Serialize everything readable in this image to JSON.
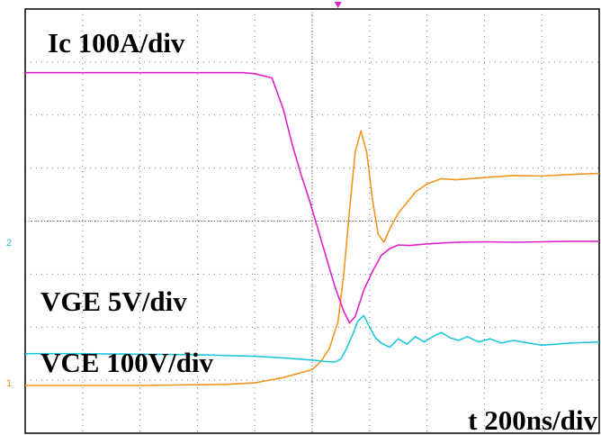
{
  "chart_data": {
    "type": "line",
    "title": "",
    "labels": {
      "ic": "Ic 100A/div",
      "vge": "VGE 5V/div",
      "vce": "VCE 100V/div",
      "time": "t 200ns/div"
    },
    "grid": {
      "x_divisions": 10,
      "y_divisions": 8,
      "style": "dotted",
      "center_cross_ticks": true
    },
    "x_unit": "ns",
    "x_per_div": 200,
    "x_range": [
      0,
      2000
    ],
    "y_range_div": [
      0,
      8
    ],
    "channel_markers": [
      {
        "text": "1",
        "color": "#f0961e",
        "y_div": 0.95
      },
      {
        "text": "2",
        "color": "#1ec8dc",
        "y_div": 3.6
      }
    ],
    "trigger_marker": {
      "color": "#e020c8",
      "x_ns": 1090
    },
    "series": [
      {
        "name": "Ic",
        "color": "#e020c8",
        "points": [
          [
            0,
            6.8
          ],
          [
            760,
            6.8
          ],
          [
            800,
            6.78
          ],
          [
            860,
            6.7
          ],
          [
            900,
            6.1
          ],
          [
            930,
            5.45
          ],
          [
            960,
            4.9
          ],
          [
            990,
            4.4
          ],
          [
            1020,
            3.85
          ],
          [
            1050,
            3.3
          ],
          [
            1080,
            2.75
          ],
          [
            1110,
            2.3
          ],
          [
            1130,
            2.08
          ],
          [
            1150,
            2.2
          ],
          [
            1180,
            2.7
          ],
          [
            1210,
            3.05
          ],
          [
            1240,
            3.35
          ],
          [
            1270,
            3.48
          ],
          [
            1300,
            3.55
          ],
          [
            1340,
            3.54
          ],
          [
            1400,
            3.57
          ],
          [
            1500,
            3.6
          ],
          [
            1600,
            3.61
          ],
          [
            1700,
            3.6
          ],
          [
            1800,
            3.61
          ],
          [
            1900,
            3.62
          ],
          [
            2000,
            3.62
          ]
        ]
      },
      {
        "name": "VGE",
        "color": "#1ec8dc",
        "points": [
          [
            0,
            1.5
          ],
          [
            200,
            1.5
          ],
          [
            400,
            1.49
          ],
          [
            600,
            1.48
          ],
          [
            800,
            1.45
          ],
          [
            900,
            1.42
          ],
          [
            1000,
            1.38
          ],
          [
            1050,
            1.35
          ],
          [
            1080,
            1.34
          ],
          [
            1100,
            1.4
          ],
          [
            1120,
            1.6
          ],
          [
            1140,
            1.85
          ],
          [
            1160,
            2.12
          ],
          [
            1180,
            2.22
          ],
          [
            1200,
            2.0
          ],
          [
            1220,
            1.8
          ],
          [
            1240,
            1.7
          ],
          [
            1270,
            1.62
          ],
          [
            1300,
            1.78
          ],
          [
            1330,
            1.68
          ],
          [
            1360,
            1.82
          ],
          [
            1390,
            1.72
          ],
          [
            1420,
            1.82
          ],
          [
            1450,
            1.9
          ],
          [
            1480,
            1.8
          ],
          [
            1510,
            1.75
          ],
          [
            1540,
            1.82
          ],
          [
            1580,
            1.72
          ],
          [
            1620,
            1.78
          ],
          [
            1660,
            1.7
          ],
          [
            1700,
            1.75
          ],
          [
            1800,
            1.66
          ],
          [
            1900,
            1.7
          ],
          [
            2000,
            1.72
          ]
        ]
      },
      {
        "name": "VCE",
        "color": "#f0961e",
        "points": [
          [
            0,
            0.9
          ],
          [
            400,
            0.9
          ],
          [
            700,
            0.92
          ],
          [
            800,
            0.95
          ],
          [
            900,
            1.05
          ],
          [
            1000,
            1.2
          ],
          [
            1030,
            1.35
          ],
          [
            1060,
            1.6
          ],
          [
            1090,
            2.1
          ],
          [
            1110,
            3.0
          ],
          [
            1130,
            4.2
          ],
          [
            1150,
            5.3
          ],
          [
            1170,
            5.7
          ],
          [
            1190,
            5.3
          ],
          [
            1210,
            4.4
          ],
          [
            1230,
            3.75
          ],
          [
            1250,
            3.6
          ],
          [
            1270,
            3.85
          ],
          [
            1300,
            4.15
          ],
          [
            1330,
            4.35
          ],
          [
            1360,
            4.55
          ],
          [
            1400,
            4.7
          ],
          [
            1450,
            4.8
          ],
          [
            1500,
            4.78
          ],
          [
            1600,
            4.82
          ],
          [
            1700,
            4.86
          ],
          [
            1800,
            4.85
          ],
          [
            1900,
            4.88
          ],
          [
            2000,
            4.9
          ]
        ]
      }
    ]
  }
}
